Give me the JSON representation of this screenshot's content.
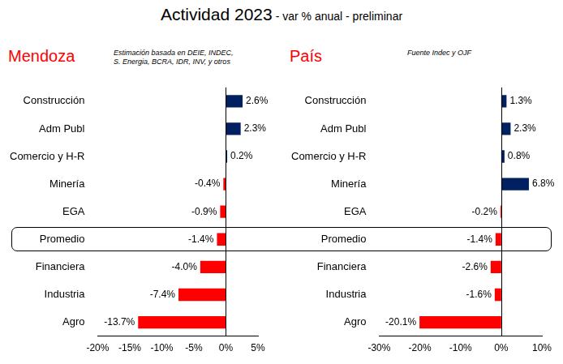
{
  "title": "Actividad 2023",
  "subtitle": "- var % anual - preliminar",
  "chart_data": [
    {
      "type": "bar",
      "orientation": "horizontal",
      "title": "Mendoza",
      "annotations": [
        "Estimación basada en DEIE, INDEC,",
        "S. Energia, BCRA, IDR, INV, y otros"
      ],
      "categories": [
        "Construcción",
        "Adm Publ",
        "Comercio y H-R",
        "Minería",
        "EGA",
        "Promedio",
        "Financiera",
        "Industria",
        "Agro"
      ],
      "values": [
        2.6,
        2.3,
        0.2,
        -0.4,
        -0.9,
        -1.4,
        -4.0,
        -7.4,
        -13.7
      ],
      "value_labels": [
        "2.6%",
        "2.3%",
        "0.2%",
        "-0.4%",
        "-0.9%",
        "-1.4%",
        "-4.0%",
        "-7.4%",
        "-13.7%"
      ],
      "colors": [
        "#002060",
        "#002060",
        "#002060",
        "#ff0000",
        "#ff0000",
        "#ff0000",
        "#ff0000",
        "#ff0000",
        "#ff0000"
      ],
      "xlim": [
        -20,
        5
      ],
      "xticks": [
        {
          "value": -20,
          "label": "-20%"
        },
        {
          "value": -15,
          "label": "-15%"
        },
        {
          "value": -10,
          "label": "-10%"
        },
        {
          "value": -5,
          "label": "-5%"
        },
        {
          "value": 0,
          "label": "0%"
        },
        {
          "value": 5,
          "label": "5%"
        }
      ],
      "grid": false,
      "data_labels": true
    },
    {
      "type": "bar",
      "orientation": "horizontal",
      "title": "País",
      "annotations": [
        "Fuente Indec y OJF"
      ],
      "categories": [
        "Construcción",
        "Adm Publ",
        "Comercio y H-R",
        "Minería",
        "EGA",
        "Promedio",
        "Financiera",
        "Industria",
        "Agro"
      ],
      "values": [
        1.3,
        2.3,
        0.8,
        6.8,
        -0.2,
        -1.4,
        -2.6,
        -1.6,
        -20.1
      ],
      "value_labels": [
        "1.3%",
        "2.3%",
        "0.8%",
        "6.8%",
        "-0.2%",
        "-1.4%",
        "-2.6%",
        "-1.6%",
        "-20.1%"
      ],
      "colors": [
        "#002060",
        "#002060",
        "#002060",
        "#002060",
        "#ff0000",
        "#ff0000",
        "#ff0000",
        "#ff0000",
        "#ff0000"
      ],
      "xlim": [
        -30,
        10
      ],
      "xticks": [
        {
          "value": -30,
          "label": "-30%"
        },
        {
          "value": -20,
          "label": "-20%"
        },
        {
          "value": -10,
          "label": "-10%"
        },
        {
          "value": 0,
          "label": "0%"
        },
        {
          "value": 10,
          "label": "10%"
        }
      ],
      "grid": false,
      "data_labels": true
    }
  ]
}
